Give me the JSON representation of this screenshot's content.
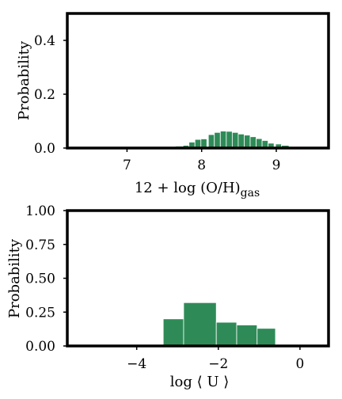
{
  "chart_data": [
    {
      "type": "bar",
      "xlabel": "12 + log (O/H)",
      "xlabel_subscript": "gas",
      "ylabel": "Probability",
      "xlim": [
        6.2,
        9.7
      ],
      "ylim": [
        0,
        0.5
      ],
      "xticks": [
        7,
        8,
        9
      ],
      "yticks": [
        0.0,
        0.2,
        0.4
      ],
      "ytick_labels": [
        "0.0",
        "0.2",
        "0.4"
      ],
      "bar_color": "#2e8b57",
      "bins": [
        {
          "x0": 7.65,
          "x1": 7.75,
          "value": 0.007
        },
        {
          "x0": 7.75,
          "x1": 7.83,
          "value": 0.01
        },
        {
          "x0": 7.83,
          "x1": 7.91,
          "value": 0.022
        },
        {
          "x0": 7.91,
          "x1": 7.99,
          "value": 0.032
        },
        {
          "x0": 7.99,
          "x1": 8.07,
          "value": 0.034
        },
        {
          "x0": 8.09,
          "x1": 8.17,
          "value": 0.05
        },
        {
          "x0": 8.17,
          "x1": 8.25,
          "value": 0.058
        },
        {
          "x0": 8.25,
          "x1": 8.33,
          "value": 0.063
        },
        {
          "x0": 8.33,
          "x1": 8.41,
          "value": 0.062
        },
        {
          "x0": 8.41,
          "x1": 8.49,
          "value": 0.058
        },
        {
          "x0": 8.49,
          "x1": 8.57,
          "value": 0.052
        },
        {
          "x0": 8.57,
          "x1": 8.65,
          "value": 0.048
        },
        {
          "x0": 8.65,
          "x1": 8.73,
          "value": 0.042
        },
        {
          "x0": 8.73,
          "x1": 8.81,
          "value": 0.035
        },
        {
          "x0": 8.81,
          "x1": 8.89,
          "value": 0.028
        },
        {
          "x0": 8.89,
          "x1": 8.97,
          "value": 0.018
        },
        {
          "x0": 8.99,
          "x1": 9.07,
          "value": 0.015
        },
        {
          "x0": 9.07,
          "x1": 9.17,
          "value": 0.01
        }
      ]
    },
    {
      "type": "bar",
      "xlabel": "log ⟨ U ⟩",
      "ylabel": "Probability",
      "xlim": [
        -5.7,
        0.7
      ],
      "ylim": [
        0,
        1.0
      ],
      "xticks": [
        -4,
        -2,
        0
      ],
      "xtick_labels": [
        "−4",
        "−2",
        "0"
      ],
      "yticks": [
        0.0,
        0.25,
        0.5,
        0.75,
        1.0
      ],
      "ytick_labels": [
        "0.00",
        "0.25",
        "0.50",
        "0.75",
        "1.00"
      ],
      "bar_color": "#2e8b57",
      "bins": [
        {
          "x0": -3.35,
          "x1": -2.85,
          "value": 0.2
        },
        {
          "x0": -2.85,
          "x1": -2.05,
          "value": 0.32
        },
        {
          "x0": -2.05,
          "x1": -1.55,
          "value": 0.175
        },
        {
          "x0": -1.55,
          "x1": -1.05,
          "value": 0.155
        },
        {
          "x0": -1.05,
          "x1": -0.6,
          "value": 0.13
        }
      ]
    }
  ]
}
